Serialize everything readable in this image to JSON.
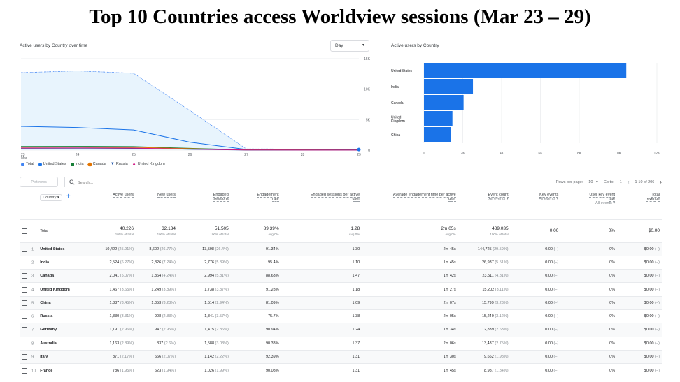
{
  "title": "Top 10 Countries access Worldview sessions (Mar 23 – 29)",
  "line_card": {
    "title": "Active users by Country over time",
    "dropdown": "Day",
    "x_labels": [
      "23\nMar",
      "24",
      "25",
      "26",
      "27",
      "28",
      "29"
    ],
    "y_labels": [
      "0",
      "5K",
      "10K",
      "15K"
    ],
    "legend": [
      "Total",
      "United States",
      "India",
      "Canada",
      "Russia",
      "United Kingdom"
    ],
    "colors": {
      "total": "#4285f4",
      "us": "#1a73e8",
      "india": "#188038",
      "canada": "#e37400",
      "russia": "#174ea6",
      "uk": "#d01884"
    }
  },
  "bar_card": {
    "title": "Active users by Country",
    "x_labels": [
      "0",
      "2K",
      "4K",
      "6K",
      "8K",
      "10K",
      "12K"
    ]
  },
  "chart_data": [
    {
      "type": "line",
      "x": [
        "23 Mar",
        "24",
        "25",
        "26",
        "27",
        "28",
        "29"
      ],
      "ylim": [
        0,
        15000
      ],
      "series": [
        {
          "name": "Total",
          "values": [
            12700,
            13000,
            12600,
            6500,
            200,
            180,
            170
          ]
        },
        {
          "name": "United States",
          "values": [
            3900,
            3700,
            3300,
            1300,
            120,
            110,
            100
          ]
        },
        {
          "name": "India",
          "values": [
            600,
            620,
            580,
            300,
            40,
            30,
            30
          ]
        },
        {
          "name": "Canada",
          "values": [
            480,
            500,
            460,
            240,
            30,
            25,
            20
          ]
        },
        {
          "name": "Russia",
          "values": [
            300,
            320,
            290,
            150,
            20,
            18,
            15
          ]
        },
        {
          "name": "United Kingdom",
          "values": [
            350,
            360,
            330,
            170,
            25,
            20,
            18
          ]
        }
      ]
    },
    {
      "type": "bar",
      "categories": [
        "United States",
        "India",
        "Canada",
        "United Kingdom",
        "China"
      ],
      "values": [
        10422,
        2524,
        2041,
        1467,
        1387
      ],
      "xlim": [
        0,
        12000
      ]
    }
  ],
  "toolbar": {
    "plot_rows": "Plot rows",
    "search_placeholder": "Search...",
    "rows_per_page_label": "Rows per page:",
    "rows_per_page": "10",
    "goto_label": "Go to:",
    "goto_value": "1",
    "range": "1-10 of 206"
  },
  "headers": {
    "country": "Country",
    "active_users": "Active users",
    "new_users": "New users",
    "engaged_sessions_1": "Engaged",
    "engaged_sessions_2": "sessions",
    "engagement_rate_1": "Engagement",
    "engagement_rate_2": "rate",
    "eng_per_user_1": "Engaged sessions per active",
    "eng_per_user_2": "user",
    "avg_time_1": "Average engagement time per active",
    "avg_time_2": "user",
    "event_count": "Event count",
    "all_events": "All events",
    "key_events": "Key events",
    "user_key_event_rate_1": "User key event",
    "user_key_event_rate_2": "rate",
    "total_revenue_1": "Total",
    "total_revenue_2": "revenue"
  },
  "total": {
    "label": "Total",
    "active_users": "40,226",
    "active_users_sub": "100% of total",
    "new_users": "32,134",
    "new_users_sub": "100% of total",
    "engaged_sessions": "51,505",
    "engaged_sessions_sub": "100% of total",
    "engagement_rate": "89.39%",
    "engagement_rate_sub": "Avg 0%",
    "eng_per_user": "1.28",
    "eng_per_user_sub": "Avg 0%",
    "avg_time": "2m 05s",
    "avg_time_sub": "Avg 0%",
    "event_count": "489,035",
    "event_count_sub": "100% of total",
    "key_events": "0.00",
    "user_key_event_rate": "0%",
    "total_revenue": "$0.00"
  },
  "rows": [
    {
      "n": "1",
      "country": "United States",
      "au": "10,422",
      "aup": "(25.91%)",
      "nu": "8,602",
      "nup": "(26.77%)",
      "es": "13,598",
      "esp": "(26.4%)",
      "er": "91.34%",
      "epu": "1.30",
      "at": "2m 45s",
      "ec": "144,725",
      "ecp": "(29.59%)",
      "ke": "0.00",
      "kep": "(−)",
      "ukr": "0%",
      "rev": "$0.00",
      "revp": "(−)"
    },
    {
      "n": "2",
      "country": "India",
      "au": "2,524",
      "aup": "(6.27%)",
      "nu": "2,326",
      "nup": "(7.24%)",
      "es": "2,776",
      "esp": "(5.39%)",
      "er": "95.4%",
      "epu": "1.10",
      "at": "1m 45s",
      "ec": "26,937",
      "ecp": "(5.51%)",
      "ke": "0.00",
      "kep": "(−)",
      "ukr": "0%",
      "rev": "$0.00",
      "revp": "(−)"
    },
    {
      "n": "3",
      "country": "Canada",
      "au": "2,041",
      "aup": "(5.07%)",
      "nu": "1,364",
      "nup": "(4.24%)",
      "es": "2,994",
      "esp": "(5.81%)",
      "er": "88.63%",
      "epu": "1.47",
      "at": "1m 42s",
      "ec": "23,511",
      "ecp": "(4.81%)",
      "ke": "0.00",
      "kep": "(−)",
      "ukr": "0%",
      "rev": "$0.00",
      "revp": "(−)"
    },
    {
      "n": "4",
      "country": "United Kingdom",
      "au": "1,467",
      "aup": "(3.65%)",
      "nu": "1,249",
      "nup": "(3.89%)",
      "es": "1,738",
      "esp": "(3.37%)",
      "er": "91.28%",
      "epu": "1.18",
      "at": "1m 27s",
      "ec": "15,202",
      "ecp": "(3.11%)",
      "ke": "0.00",
      "kep": "(−)",
      "ukr": "0%",
      "rev": "$0.00",
      "revp": "(−)"
    },
    {
      "n": "5",
      "country": "China",
      "au": "1,387",
      "aup": "(3.45%)",
      "nu": "1,053",
      "nup": "(3.28%)",
      "es": "1,514",
      "esp": "(2.94%)",
      "er": "81.09%",
      "epu": "1.09",
      "at": "2m 07s",
      "ec": "15,799",
      "ecp": "(3.23%)",
      "ke": "0.00",
      "kep": "(−)",
      "ukr": "0%",
      "rev": "$0.00",
      "revp": "(−)"
    },
    {
      "n": "6",
      "country": "Russia",
      "au": "1,330",
      "aup": "(3.31%)",
      "nu": "908",
      "nup": "(2.83%)",
      "es": "1,841",
      "esp": "(3.57%)",
      "er": "75.7%",
      "epu": "1.38",
      "at": "2m 05s",
      "ec": "15,240",
      "ecp": "(3.12%)",
      "ke": "0.00",
      "kep": "(−)",
      "ukr": "0%",
      "rev": "$0.00",
      "revp": "(−)"
    },
    {
      "n": "7",
      "country": "Germany",
      "au": "1,191",
      "aup": "(2.96%)",
      "nu": "947",
      "nup": "(2.95%)",
      "es": "1,475",
      "esp": "(2.86%)",
      "er": "90.94%",
      "epu": "1.24",
      "at": "1m 34s",
      "ec": "12,839",
      "ecp": "(2.63%)",
      "ke": "0.00",
      "kep": "(−)",
      "ukr": "0%",
      "rev": "$0.00",
      "revp": "(−)"
    },
    {
      "n": "8",
      "country": "Australia",
      "au": "1,163",
      "aup": "(2.89%)",
      "nu": "837",
      "nup": "(2.6%)",
      "es": "1,588",
      "esp": "(3.08%)",
      "er": "90.33%",
      "epu": "1.37",
      "at": "2m 06s",
      "ec": "13,437",
      "ecp": "(2.75%)",
      "ke": "0.00",
      "kep": "(−)",
      "ukr": "0%",
      "rev": "$0.00",
      "revp": "(−)"
    },
    {
      "n": "9",
      "country": "Italy",
      "au": "871",
      "aup": "(2.17%)",
      "nu": "666",
      "nup": "(2.07%)",
      "es": "1,142",
      "esp": "(2.22%)",
      "er": "92.39%",
      "epu": "1.31",
      "at": "1m 30s",
      "ec": "9,662",
      "ecp": "(1.98%)",
      "ke": "0.00",
      "kep": "(−)",
      "ukr": "0%",
      "rev": "$0.00",
      "revp": "(−)"
    },
    {
      "n": "10",
      "country": "France",
      "au": "786",
      "aup": "(1.95%)",
      "nu": "623",
      "nup": "(1.94%)",
      "es": "1,026",
      "esp": "(1.99%)",
      "er": "90.08%",
      "epu": "1.31",
      "at": "1m 45s",
      "ec": "8,987",
      "ecp": "(1.84%)",
      "ke": "0.00",
      "kep": "(−)",
      "ukr": "0%",
      "rev": "$0.00",
      "revp": "(−)"
    }
  ]
}
